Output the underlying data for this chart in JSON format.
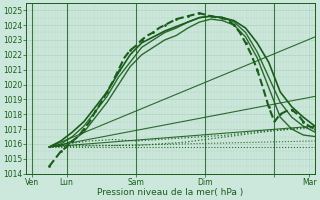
{
  "xlabel": "Pression niveau de la mer( hPa )",
  "ylim": [
    1014,
    1025.5
  ],
  "xlim": [
    0,
    100
  ],
  "yticks": [
    1014,
    1015,
    1016,
    1017,
    1018,
    1019,
    1020,
    1021,
    1022,
    1023,
    1024,
    1025
  ],
  "xtick_positions": [
    2,
    14,
    38,
    62,
    86,
    98
  ],
  "xtick_labels": [
    "Ven",
    "Lun",
    "Sam",
    "Dim",
    "",
    "Mar"
  ],
  "vline_positions": [
    2,
    14,
    38,
    62,
    86
  ],
  "bg_color": "#cce8dc",
  "grid_color": "#aacfbf",
  "line_color": "#1a5c1a",
  "fan_lines": [
    {
      "x": [
        8,
        100
      ],
      "y": [
        1015.8,
        1023.2
      ],
      "ls": "-",
      "lw": 0.8,
      "alpha": 0.9
    },
    {
      "x": [
        8,
        100
      ],
      "y": [
        1015.8,
        1019.2
      ],
      "ls": "-",
      "lw": 0.8,
      "alpha": 0.9
    },
    {
      "x": [
        8,
        100
      ],
      "y": [
        1015.8,
        1017.2
      ],
      "ls": "-",
      "lw": 0.8,
      "alpha": 0.9
    },
    {
      "x": [
        8,
        100
      ],
      "y": [
        1015.8,
        1016.2
      ],
      "ls": ":",
      "lw": 0.8,
      "alpha": 0.9
    },
    {
      "x": [
        8,
        100
      ],
      "y": [
        1015.8,
        1015.8
      ],
      "ls": ":",
      "lw": 0.8,
      "alpha": 0.9
    }
  ],
  "ensemble_series": [
    {
      "x": [
        8,
        12,
        16,
        20,
        24,
        28,
        32,
        36,
        40,
        44,
        48,
        52,
        56,
        60,
        64,
        68,
        72,
        76,
        80,
        84,
        88,
        92,
        96,
        100
      ],
      "y": [
        1015.8,
        1016.2,
        1016.8,
        1017.5,
        1018.5,
        1019.5,
        1020.8,
        1022.0,
        1022.8,
        1023.2,
        1023.6,
        1023.9,
        1024.2,
        1024.5,
        1024.6,
        1024.5,
        1024.3,
        1023.8,
        1022.8,
        1021.5,
        1019.5,
        1018.5,
        1017.8,
        1017.2
      ],
      "ls": "-",
      "lw": 1.2,
      "alpha": 1.0
    },
    {
      "x": [
        8,
        12,
        16,
        20,
        24,
        28,
        32,
        36,
        40,
        44,
        48,
        52,
        56,
        60,
        64,
        68,
        72,
        76,
        80,
        84,
        88,
        92,
        96,
        100
      ],
      "y": [
        1015.8,
        1016.0,
        1016.5,
        1017.2,
        1018.2,
        1019.2,
        1020.5,
        1021.5,
        1022.5,
        1023.0,
        1023.5,
        1023.8,
        1024.2,
        1024.5,
        1024.6,
        1024.5,
        1024.2,
        1023.5,
        1022.2,
        1020.5,
        1018.8,
        1017.8,
        1017.2,
        1016.8
      ],
      "ls": "-",
      "lw": 1.0,
      "alpha": 0.9
    },
    {
      "x": [
        8,
        12,
        16,
        20,
        24,
        28,
        32,
        36,
        40,
        44,
        48,
        52,
        56,
        60,
        64,
        68,
        72,
        76,
        80,
        84,
        88,
        92,
        96,
        100
      ],
      "y": [
        1015.8,
        1015.9,
        1016.2,
        1016.8,
        1017.8,
        1018.8,
        1020.0,
        1021.2,
        1022.0,
        1022.5,
        1023.0,
        1023.3,
        1023.8,
        1024.2,
        1024.4,
        1024.3,
        1024.0,
        1023.2,
        1021.8,
        1019.8,
        1017.8,
        1017.0,
        1016.6,
        1016.5
      ],
      "ls": "-",
      "lw": 1.0,
      "alpha": 0.9
    },
    {
      "x": [
        8,
        14,
        22,
        30,
        38,
        46,
        54,
        62,
        70,
        78,
        86,
        92,
        100
      ],
      "y": [
        1015.8,
        1016.0,
        1016.2,
        1016.3,
        1016.2,
        1016.3,
        1016.4,
        1016.5,
        1016.6,
        1016.8,
        1016.9,
        1017.0,
        1017.2
      ],
      "ls": ":",
      "lw": 0.9,
      "alpha": 0.9
    },
    {
      "x": [
        8,
        14,
        22,
        30,
        38,
        46,
        54,
        62,
        70,
        78,
        86,
        92,
        100
      ],
      "y": [
        1015.8,
        1015.9,
        1015.9,
        1015.9,
        1015.9,
        1016.0,
        1016.1,
        1016.3,
        1016.5,
        1016.7,
        1016.9,
        1017.0,
        1017.1
      ],
      "ls": ":",
      "lw": 0.9,
      "alpha": 0.9
    }
  ],
  "main_series_x": [
    8,
    10,
    12,
    14,
    16,
    18,
    20,
    22,
    24,
    26,
    28,
    30,
    32,
    34,
    36,
    38,
    40,
    42,
    44,
    46,
    48,
    50,
    52,
    54,
    56,
    58,
    60,
    62,
    64,
    66,
    68,
    70,
    72,
    74,
    76,
    78,
    80,
    82,
    84,
    86,
    88,
    90,
    92,
    94,
    96,
    98,
    100
  ],
  "main_series_y": [
    1014.5,
    1015.0,
    1015.5,
    1015.8,
    1016.2,
    1016.5,
    1017.0,
    1017.5,
    1018.2,
    1018.8,
    1019.5,
    1020.2,
    1021.0,
    1021.8,
    1022.3,
    1022.6,
    1023.0,
    1023.3,
    1023.5,
    1023.8,
    1024.0,
    1024.2,
    1024.4,
    1024.5,
    1024.6,
    1024.7,
    1024.8,
    1024.7,
    1024.6,
    1024.5,
    1024.5,
    1024.3,
    1024.0,
    1023.5,
    1022.8,
    1022.0,
    1021.0,
    1019.8,
    1018.5,
    1017.5,
    1018.0,
    1018.2,
    1018.3,
    1018.0,
    1017.5,
    1017.2,
    1017.0
  ]
}
